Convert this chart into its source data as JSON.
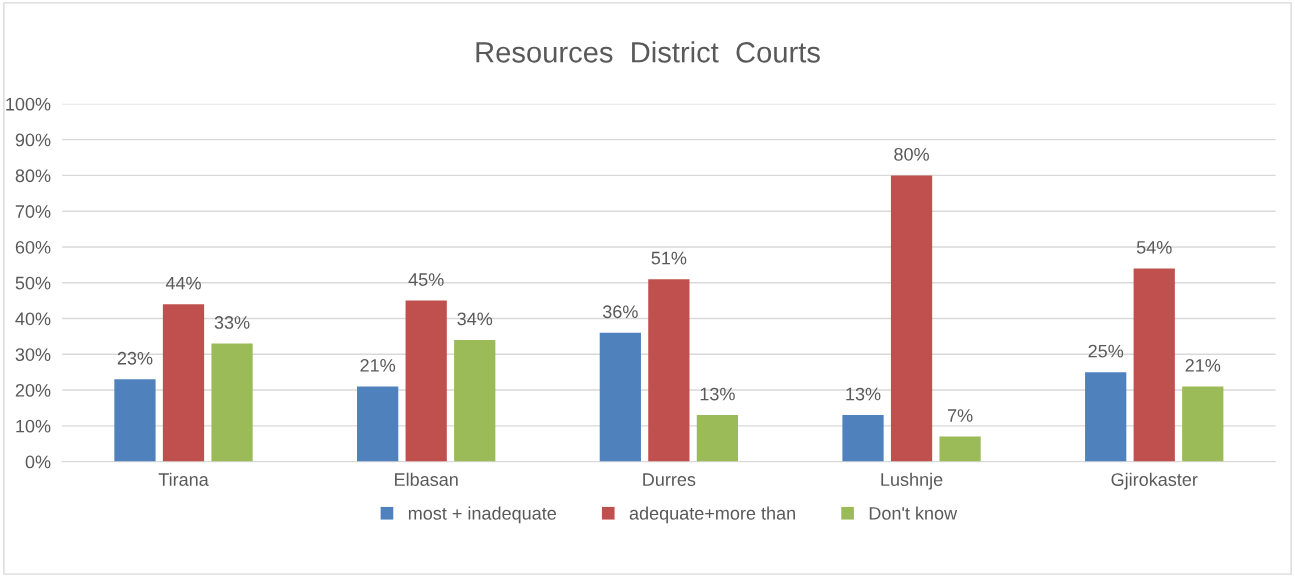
{
  "chart_data": {
    "type": "bar",
    "title": "Resources  District  Courts",
    "categories": [
      "Tirana",
      "Elbasan",
      "Durres",
      "Lushnje",
      "Gjirokaster"
    ],
    "series": [
      {
        "name": "most + inadequate",
        "color": "#4f81bd",
        "values": [
          23,
          21,
          36,
          13,
          25
        ],
        "value_labels": [
          "23%",
          "21%",
          "36%",
          "13%",
          "25%"
        ]
      },
      {
        "name": "adequate+more than",
        "color": "#c0504d",
        "values": [
          44,
          45,
          51,
          80,
          54
        ],
        "value_labels": [
          "44%",
          "45%",
          "51%",
          "80%",
          "54%"
        ]
      },
      {
        "name": "Don't know",
        "color": "#9bbb59",
        "values": [
          33,
          34,
          13,
          7,
          21
        ],
        "value_labels": [
          "33%",
          "34%",
          "13%",
          "7%",
          "21%"
        ]
      }
    ],
    "ylim": [
      0,
      100
    ],
    "yticks": [
      {
        "value": 0,
        "label": "0%"
      },
      {
        "value": 10,
        "label": "10%"
      },
      {
        "value": 20,
        "label": "20%"
      },
      {
        "value": 30,
        "label": "30%"
      },
      {
        "value": 40,
        "label": "40%"
      },
      {
        "value": 50,
        "label": "50%"
      },
      {
        "value": 60,
        "label": "60%"
      },
      {
        "value": 70,
        "label": "70%"
      },
      {
        "value": 80,
        "label": "80%"
      },
      {
        "value": 90,
        "label": "90%"
      },
      {
        "value": 100,
        "label": "100%"
      }
    ],
    "grid": "y",
    "legend": "bottom"
  }
}
